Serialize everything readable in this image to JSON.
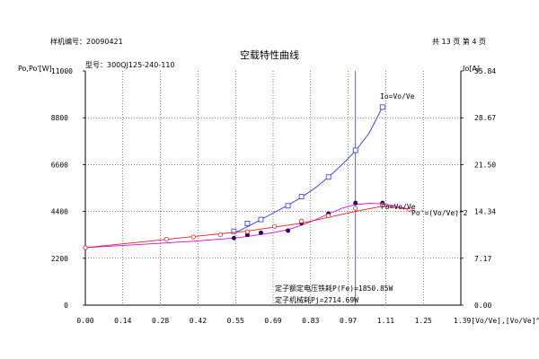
{
  "header": {
    "sample_no": "样机编号：20090421",
    "page_info": "共 13 页  第 4 页"
  },
  "chart_data": {
    "type": "line",
    "title": "空载特性曲线",
    "model": "型号：300QJ125-240-110",
    "ylabel_left": "Po,Po'[W]",
    "ylabel_right": "Io[A]",
    "xlabel": "[Vo/Ve],[Vo/Ve]^2",
    "xlim": [
      0,
      1.39
    ],
    "ylim_left": [
      0,
      11000
    ],
    "ylim_right": [
      0,
      35.84
    ],
    "x_ticks": [
      "0.00",
      "0.14",
      "0.28",
      "0.42",
      "0.55",
      "0.69",
      "0.83",
      "0.97",
      "1.11",
      "1.25",
      "1.39"
    ],
    "y_left_ticks": [
      "0",
      "2200",
      "4400",
      "6600",
      "8800",
      "11000"
    ],
    "y_right_ticks": [
      "0.00",
      "7.17",
      "14.34",
      "21.50",
      "28.67",
      "35.84"
    ],
    "ref_line_x": 1.0,
    "series": [
      {
        "name": "Io=Vo/Ve",
        "axis": "right",
        "color": "#3030e0",
        "marker": "square",
        "points": [
          [
            0.55,
            11.3
          ],
          [
            0.6,
            12.5
          ],
          [
            0.65,
            13.1
          ],
          [
            0.75,
            15.2
          ],
          [
            0.8,
            16.6
          ],
          [
            0.9,
            19.6
          ],
          [
            1.0,
            23.7
          ],
          [
            1.1,
            30.3
          ]
        ],
        "curve": [
          [
            0.55,
            11.0
          ],
          [
            0.6,
            12.0
          ],
          [
            0.65,
            13.1
          ],
          [
            0.7,
            14.2
          ],
          [
            0.75,
            15.3
          ],
          [
            0.8,
            16.5
          ],
          [
            0.85,
            17.9
          ],
          [
            0.9,
            19.6
          ],
          [
            0.95,
            21.5
          ],
          [
            1.0,
            23.6
          ],
          [
            1.05,
            26.3
          ],
          [
            1.1,
            30.3
          ]
        ]
      },
      {
        "name": "Po=Vo/Ve",
        "axis": "left",
        "color": "#e000e0",
        "marker": "filled-dot",
        "points": [
          [
            0.0,
            2700
          ],
          [
            0.55,
            3150
          ],
          [
            0.6,
            3300
          ],
          [
            0.65,
            3400
          ],
          [
            0.75,
            3500
          ],
          [
            0.8,
            3850
          ],
          [
            0.9,
            4300
          ],
          [
            1.0,
            4800
          ],
          [
            1.1,
            4800
          ]
        ],
        "curve": [
          [
            0.0,
            2700
          ],
          [
            0.2,
            2850
          ],
          [
            0.4,
            3000
          ],
          [
            0.55,
            3150
          ],
          [
            0.6,
            3230
          ],
          [
            0.65,
            3320
          ],
          [
            0.7,
            3420
          ],
          [
            0.75,
            3550
          ],
          [
            0.8,
            3750
          ],
          [
            0.85,
            4000
          ],
          [
            0.9,
            4280
          ],
          [
            0.95,
            4550
          ],
          [
            1.0,
            4720
          ],
          [
            1.05,
            4780
          ],
          [
            1.1,
            4760
          ],
          [
            1.15,
            4650
          ],
          [
            1.2,
            4500
          ]
        ]
      },
      {
        "name": "Po'=(Vo/Ve)^2",
        "axis": "left",
        "color": "#e02020",
        "marker": "open-circle",
        "points": [
          [
            0.0,
            2700
          ],
          [
            0.3,
            3100
          ],
          [
            0.4,
            3200
          ],
          [
            0.5,
            3300
          ],
          [
            0.6,
            3450
          ],
          [
            0.7,
            3700
          ],
          [
            0.8,
            3950
          ],
          [
            0.9,
            4200
          ],
          [
            1.0,
            4550
          ],
          [
            1.1,
            4700
          ],
          [
            1.2,
            4500
          ]
        ],
        "curve": [
          [
            0.0,
            2700
          ],
          [
            0.2,
            2960
          ],
          [
            0.4,
            3220
          ],
          [
            0.6,
            3480
          ],
          [
            0.8,
            3850
          ],
          [
            1.0,
            4400
          ],
          [
            1.1,
            4650
          ],
          [
            1.2,
            4500
          ]
        ]
      }
    ],
    "annotations": [
      "定子额定电压铁耗P(Fe)=1850.85W",
      "定子机械耗Pj=2714.69W"
    ]
  }
}
